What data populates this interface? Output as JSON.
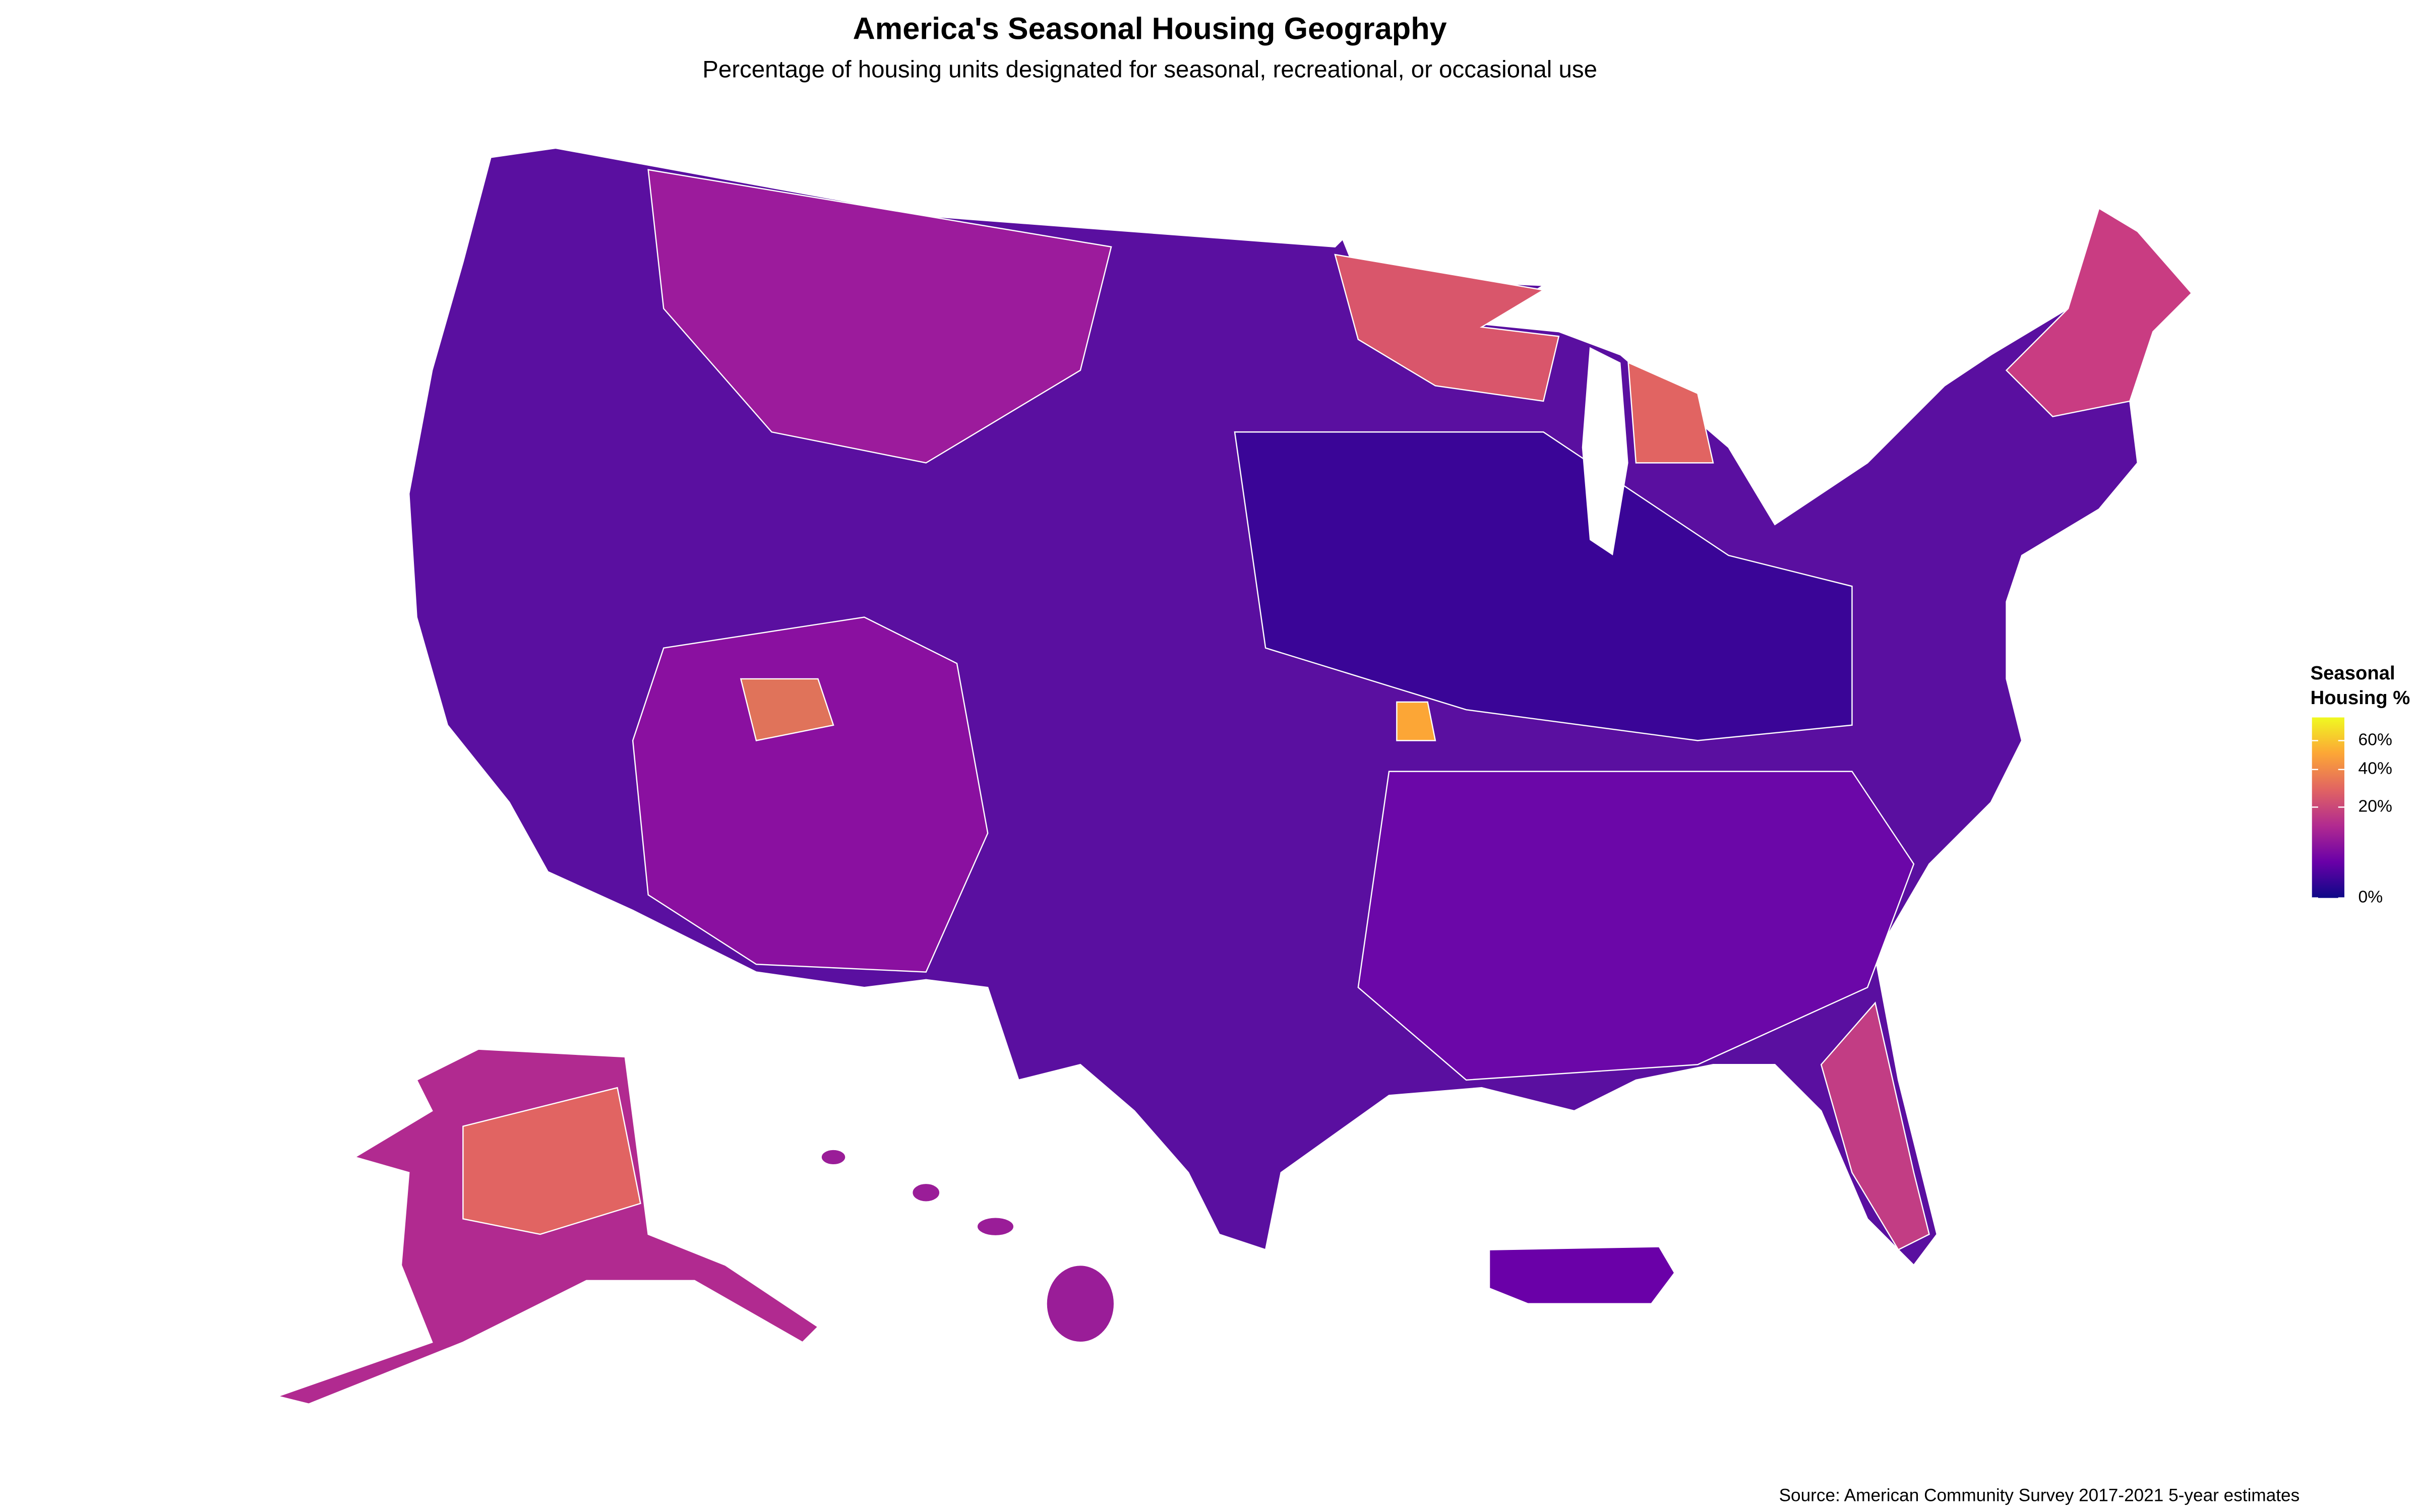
{
  "title": "America's Seasonal Housing Geography",
  "subtitle": "Percentage of housing units designated for seasonal, recreational, or occasional use",
  "legend": {
    "title_lines": [
      "Seasonal",
      "Housing %"
    ],
    "scale": "sqrt",
    "range": [
      0,
      79
    ],
    "colors": [
      "#0d0887",
      "#6a00a8",
      "#b12a90",
      "#e16462",
      "#fca636",
      "#f0f921"
    ],
    "ticks": [
      {
        "value": 0,
        "label": "0%"
      },
      {
        "value": 20,
        "label": "20%"
      },
      {
        "value": 40,
        "label": "40%"
      },
      {
        "value": 60,
        "label": "60%"
      }
    ]
  },
  "source": "Source: American Community Survey 2017-2021 5-year estimates"
}
